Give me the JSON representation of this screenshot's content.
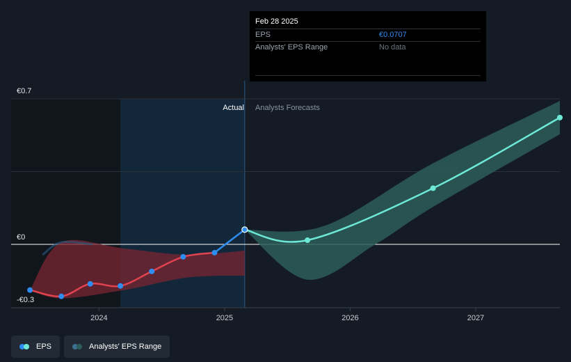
{
  "tooltip": {
    "date": "Feb 28 2025",
    "eps_label": "EPS",
    "eps_value": "€0.0707",
    "range_label": "Analysts' EPS Range",
    "range_value": "No data"
  },
  "sections": {
    "actual": "Actual",
    "forecast": "Analysts Forecasts"
  },
  "legend": {
    "eps": "EPS",
    "range": "Analysts' EPS Range"
  },
  "colors": {
    "background": "#151b24",
    "eps_actual": "#e0434f",
    "eps_recent": "#2f8cf0",
    "eps_forecast": "#6ee8d6",
    "range_actual": "#7a2630",
    "range_forecast": "#2c5d58"
  },
  "chart_data": {
    "type": "line",
    "y_tick_labels": [
      "€0.7",
      "€0",
      "-€0.3"
    ],
    "y_ticks": [
      0.7,
      0,
      -0.3
    ],
    "ylim": [
      -0.3,
      0.7
    ],
    "x_tick_labels": [
      "2024",
      "2025",
      "2026",
      "2027"
    ],
    "x_ticks": [
      2024,
      2025,
      2026,
      2027
    ],
    "xlim": [
      2023.3,
      2027.67
    ],
    "grid": true,
    "series": [
      {
        "name": "EPS",
        "segment": "actual",
        "points": [
          [
            2023.45,
            -0.22
          ],
          [
            2023.7,
            -0.25
          ],
          [
            2023.93,
            -0.19
          ],
          [
            2024.17,
            -0.2
          ],
          [
            2024.42,
            -0.13
          ],
          [
            2024.67,
            -0.06
          ],
          [
            2024.92,
            -0.04
          ],
          [
            2025.16,
            0.0707
          ]
        ]
      },
      {
        "name": "EPS",
        "segment": "forecast",
        "points": [
          [
            2025.16,
            0.0707
          ],
          [
            2025.66,
            0.02
          ],
          [
            2026.66,
            0.27
          ],
          [
            2027.67,
            0.61
          ]
        ]
      }
    ],
    "range": [
      {
        "segment": "actual",
        "upper": [
          [
            2023.45,
            -0.22
          ],
          [
            2023.7,
            0.01
          ],
          [
            2024.2,
            -0.02
          ],
          [
            2024.7,
            -0.05
          ],
          [
            2025.16,
            -0.03
          ]
        ],
        "lower": [
          [
            2023.45,
            -0.22
          ],
          [
            2023.7,
            -0.26
          ],
          [
            2024.2,
            -0.22
          ],
          [
            2024.7,
            -0.16
          ],
          [
            2025.16,
            -0.15
          ]
        ]
      },
      {
        "segment": "forecast",
        "upper": [
          [
            2025.16,
            0.0707
          ],
          [
            2025.8,
            0.09
          ],
          [
            2026.66,
            0.39
          ],
          [
            2027.67,
            0.69
          ]
        ],
        "lower": [
          [
            2025.16,
            0.0707
          ],
          [
            2025.66,
            -0.17
          ],
          [
            2026.2,
            0.0
          ],
          [
            2026.66,
            0.18
          ],
          [
            2027.67,
            0.53
          ]
        ]
      }
    ]
  }
}
